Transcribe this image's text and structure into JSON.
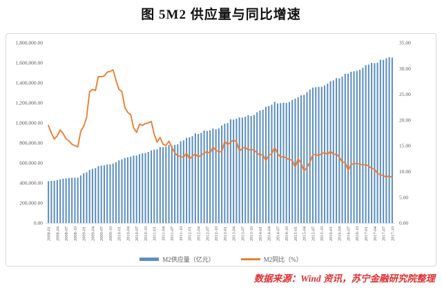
{
  "title": "图 5M2 供应量与同比增速",
  "source": "数据来源：Wind 资讯，苏宁金融研究院整理",
  "legend": {
    "bar_label": "M2供应量（亿元）",
    "line_label": "M2同比（%）"
  },
  "colors": {
    "bar": "#5e90c0",
    "line": "#ed7d31",
    "axis_text": "#595959",
    "box_border": "#d9d9d9",
    "source_text": "#e03131",
    "baseline": "#c9d6e4"
  },
  "chart_data": {
    "type": "bar",
    "title": "图 5M2 供应量与同比增速",
    "x_start": "2008-01",
    "x_end": "2017-10",
    "x_freq": "monthly",
    "x_tick_every": 3,
    "x_tick_labels": [
      "2008-01",
      "2008-04",
      "2008-07",
      "2008-10",
      "2009-01",
      "2009-04",
      "2009-07",
      "2009-10",
      "2010-01",
      "2010-04",
      "2010-07",
      "2010-10",
      "2011-01",
      "2011-04",
      "2011-07",
      "2011-10",
      "2012-01",
      "2012-04",
      "2012-07",
      "2012-10",
      "2013-01",
      "2013-04",
      "2013-07",
      "2013-10",
      "2014-01",
      "2014-04",
      "2014-07",
      "2014-10",
      "2015-01",
      "2015-04",
      "2015-07",
      "2015-10",
      "2016-01",
      "2016-04",
      "2016-07",
      "2016-10",
      "2017-01",
      "2017-04",
      "2017-07",
      "2017-10"
    ],
    "left_axis": {
      "min": 0,
      "max": 1800000,
      "step": 200000,
      "format": "thousands-2dp"
    },
    "right_axis": {
      "min": 0,
      "max": 35,
      "step": 5,
      "format": "2dp"
    },
    "grid": false,
    "legend_position": "bottom",
    "series": [
      {
        "name": "M2供应量（亿元）",
        "type": "bar",
        "axis": "left",
        "color": "#5e90c0",
        "values": [
          417846,
          421038,
          423055,
          429314,
          436402,
          443141,
          446362,
          448847,
          452899,
          453133,
          453325,
          475167,
          496135,
          506708,
          530627,
          540481,
          548264,
          568916,
          573103,
          576699,
          585405,
          586643,
          594605,
          606225,
          625609,
          636072,
          649947,
          656561,
          663351,
          673922,
          674051,
          687507,
          696471,
          699776,
          710339,
          725852,
          733885,
          736130,
          758131,
          757385,
          763409,
          780821,
          773029,
          780852,
          787406,
          816829,
          825493,
          851591,
          855898,
          867209,
          895565,
          888962,
          900862,
          925000,
          919089,
          924888,
          943678,
          936427,
          944762,
          974159,
          992100,
          998600,
          1036100,
          1032600,
          1042100,
          1054500,
          1052300,
          1061200,
          1077400,
          1070200,
          1079300,
          1106500,
          1123500,
          1131800,
          1160700,
          1168800,
          1182300,
          1209600,
          1194200,
          1197500,
          1202100,
          1199200,
          1208600,
          1228400,
          1242700,
          1257400,
          1275300,
          1280800,
          1307400,
          1333400,
          1353200,
          1356900,
          1359800,
          1361000,
          1374000,
          1392300,
          1416300,
          1424600,
          1446200,
          1445200,
          1461700,
          1490500,
          1491600,
          1511000,
          1516400,
          1519500,
          1530400,
          1550100,
          1575900,
          1582900,
          1599600,
          1596300,
          1601400,
          1631300,
          1629000,
          1645200,
          1655700,
          1653400
        ]
      },
      {
        "name": "M2同比（%）",
        "type": "line",
        "axis": "right",
        "color": "#ed7d31",
        "values": [
          18.94,
          17.48,
          16.29,
          16.94,
          18.07,
          17.37,
          16.35,
          15.95,
          15.29,
          15.02,
          14.8,
          17.82,
          18.79,
          20.48,
          25.51,
          25.95,
          25.74,
          28.46,
          28.42,
          28.53,
          29.31,
          29.42,
          29.74,
          27.68,
          25.98,
          25.52,
          22.5,
          21.48,
          21.04,
          18.46,
          17.61,
          19.2,
          18.96,
          19.32,
          19.46,
          19.72,
          17.23,
          15.71,
          16.61,
          15.31,
          15.06,
          15.89,
          14.71,
          13.62,
          13.04,
          12.94,
          12.74,
          13.61,
          12.44,
          12.99,
          13.44,
          12.81,
          13.2,
          13.57,
          13.9,
          13.5,
          14.8,
          14.1,
          13.9,
          13.8,
          15.9,
          15.2,
          15.7,
          16.1,
          15.8,
          14.0,
          14.5,
          14.7,
          14.2,
          14.3,
          14.2,
          13.6,
          13.2,
          13.3,
          12.1,
          13.2,
          13.4,
          14.7,
          13.5,
          12.8,
          12.9,
          12.6,
          12.3,
          12.2,
          10.8,
          12.5,
          11.6,
          10.1,
          10.8,
          11.8,
          13.3,
          13.3,
          13.1,
          13.5,
          13.7,
          13.3,
          14.0,
          13.3,
          13.4,
          12.8,
          11.8,
          11.8,
          10.2,
          11.4,
          11.5,
          11.6,
          11.4,
          11.3,
          11.3,
          11.1,
          10.6,
          10.5,
          9.6,
          9.4,
          9.2,
          8.9,
          9.2,
          8.8
        ]
      }
    ]
  }
}
